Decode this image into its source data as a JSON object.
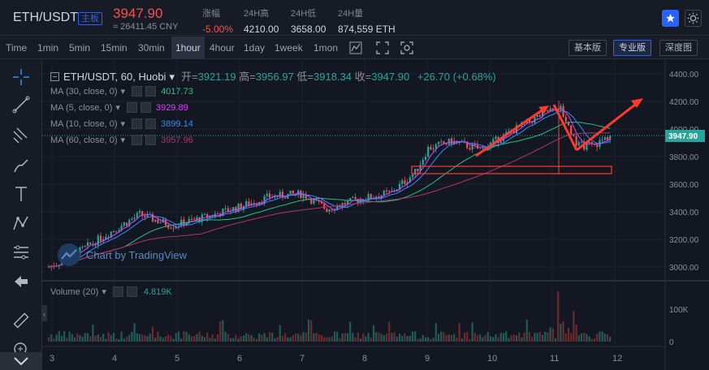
{
  "header": {
    "pair": "ETH/USDT",
    "pair_tag": "主板",
    "last_price": "3947.90",
    "cny_price": "≈ 26411.45 CNY",
    "change": {
      "label": "涨幅",
      "value": "-5.00%"
    },
    "high": {
      "label": "24H高",
      "value": "4210.00"
    },
    "low": {
      "label": "24H低",
      "value": "3658.00"
    },
    "volume": {
      "label": "24H量",
      "value": "874,559 ETH"
    },
    "icons": [
      "star-icon",
      "theme-icon"
    ]
  },
  "toolbar": {
    "timeframes": [
      {
        "label": "Time",
        "active": false
      },
      {
        "label": "1min",
        "active": false
      },
      {
        "label": "5min",
        "active": false
      },
      {
        "label": "15min",
        "active": false
      },
      {
        "label": "30min",
        "active": false
      },
      {
        "label": "1hour",
        "active": true
      },
      {
        "label": "4hour",
        "active": false
      },
      {
        "label": "1day",
        "active": false
      },
      {
        "label": "1week",
        "active": false
      },
      {
        "label": "1mon",
        "active": false
      }
    ],
    "versions": [
      {
        "label": "基本版",
        "active": false
      },
      {
        "label": "专业版",
        "active": true
      },
      {
        "label": "深度图",
        "active": false
      }
    ]
  },
  "legend": {
    "symbol": "ETH/USDT, 60, Huobi",
    "open_label": "开=",
    "open": "3921.19",
    "high_label": "高=",
    "high": "3956.97",
    "low_label": "低=",
    "low": "3918.34",
    "close_label": "收=",
    "close": "3947.90",
    "change": "+26.70 (+0.68%)"
  },
  "indicators": [
    {
      "label": "MA (30, close, 0)",
      "value": "4017.73",
      "color": "#26c281"
    },
    {
      "label": "MA (5, close, 0)",
      "value": "3929.89",
      "color": "#e040fb"
    },
    {
      "label": "MA (10, close, 0)",
      "value": "3899.14",
      "color": "#2f8cff"
    },
    {
      "label": "MA (60, close, 0)",
      "value": "3957.96",
      "color": "#b0336e"
    }
  ],
  "volume_legend": {
    "label": "Volume (20)",
    "value": "4.819K"
  },
  "watermark": "Chart by TradingView",
  "price_axis": {
    "ticks": [
      "4400.00",
      "4200.00",
      "4000.00",
      "3800.00",
      "3600.00",
      "3400.00",
      "3200.00",
      "3000.00"
    ],
    "current": "3947.90"
  },
  "volume_axis": {
    "ticks": [
      "100K",
      "0"
    ]
  },
  "time_axis": {
    "ticks": [
      "3",
      "4",
      "5",
      "6",
      "7",
      "8",
      "9",
      "10",
      "11",
      "12"
    ]
  },
  "colors": {
    "up": "#26a69a",
    "down": "#ef5350",
    "annotation": "#ff3b30",
    "background": "#131722"
  }
}
